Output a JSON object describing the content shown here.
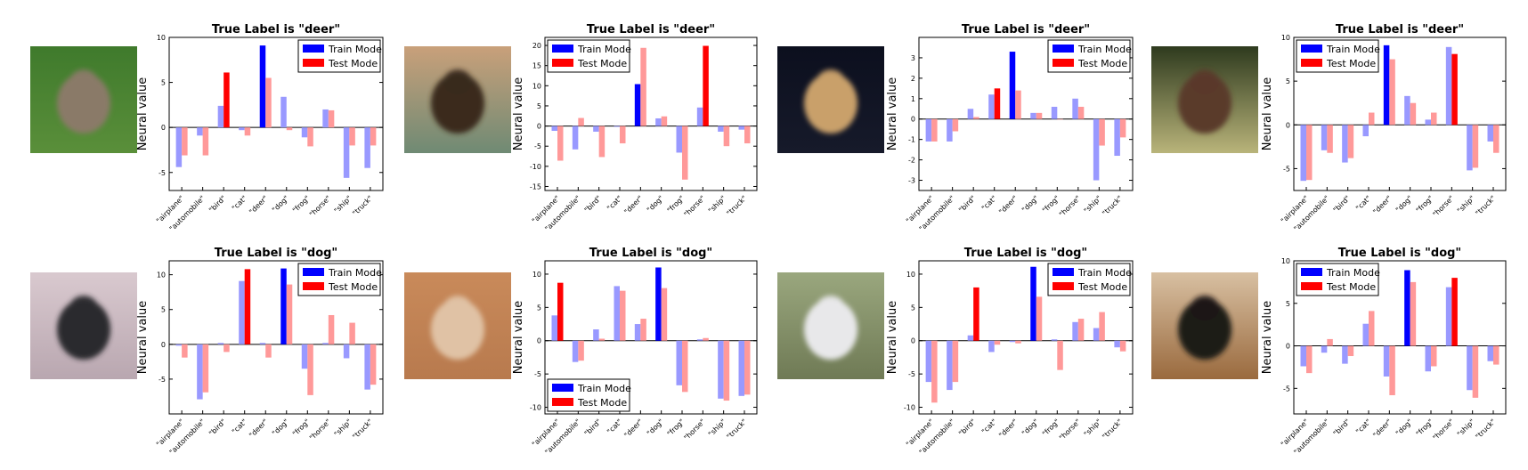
{
  "colors": {
    "train_strong": "#0000ff",
    "train_faded": "#9999ff",
    "test_strong": "#ff0000",
    "test_faded": "#ff9999"
  },
  "thumbnails": [
    {
      "name": "deer-photo-1",
      "bg": [
        "#3f7a2c",
        "#5a8f3a"
      ],
      "subject": "#8a7a68"
    },
    {
      "name": "deer-photo-2",
      "bg": [
        "#c9a07a",
        "#6f8a74"
      ],
      "subject": "#3a2a1e"
    },
    {
      "name": "deer-photo-3",
      "bg": [
        "#0c0f1e",
        "#161a2a"
      ],
      "subject": "#c9a06a"
    },
    {
      "name": "deer-photo-4",
      "bg": [
        "#2e3a1e",
        "#b9b47a"
      ],
      "subject": "#5a3a2a"
    },
    {
      "name": "dog-photo-1",
      "bg": [
        "#d9c9cf",
        "#b9a7b0"
      ],
      "subject": "#2a2a2e"
    },
    {
      "name": "dog-photo-2",
      "bg": [
        "#c98a5a",
        "#b87a4e"
      ],
      "subject": "#e0c2a5"
    },
    {
      "name": "dog-photo-3",
      "bg": [
        "#9aa77e",
        "#6f7a55"
      ],
      "subject": "#e8e8ea"
    },
    {
      "name": "dog-photo-4",
      "bg": [
        "#d8c0a2",
        "#9a6a3e"
      ],
      "subject": "#1e1a18"
    }
  ],
  "chart_data": [
    {
      "type": "bar",
      "title": "True Label is \"deer\"",
      "ylabel": "Neural value",
      "categories": [
        "\"airplane\"",
        "\"automobile\"",
        "\"bird\"",
        "\"cat\"",
        "\"deer\"",
        "\"dog\"",
        "\"frog\"",
        "\"horse\"",
        "\"ship\"",
        "\"truck\""
      ],
      "ylim": [
        -7,
        10
      ],
      "yticks": [
        -5,
        0,
        5,
        10
      ],
      "legend": "top-right",
      "series": [
        {
          "name": "Train Mode",
          "values": [
            -4.4,
            -0.9,
            2.4,
            -0.3,
            9.1,
            3.4,
            -1.1,
            2.0,
            -5.6,
            -4.5
          ]
        },
        {
          "name": "Test Mode",
          "values": [
            -3.1,
            -3.1,
            6.1,
            -0.9,
            5.5,
            -0.3,
            -2.1,
            1.9,
            -2.0,
            -2.0
          ]
        }
      ]
    },
    {
      "type": "bar",
      "title": "True Label is \"deer\"",
      "ylabel": "Neural value",
      "categories": [
        "\"airplane\"",
        "\"automobile\"",
        "\"bird\"",
        "\"cat\"",
        "\"deer\"",
        "\"dog\"",
        "\"frog\"",
        "\"horse\"",
        "\"ship\"",
        "\"truck\""
      ],
      "ylim": [
        -16,
        22
      ],
      "yticks": [
        -15,
        -10,
        -5,
        0,
        5,
        10,
        15,
        20
      ],
      "legend": "top-left",
      "series": [
        {
          "name": "Train Mode",
          "values": [
            -1.2,
            -5.8,
            -1.4,
            -0.2,
            10.4,
            1.9,
            -6.6,
            4.6,
            -1.4,
            -0.9
          ]
        },
        {
          "name": "Test Mode",
          "values": [
            -8.6,
            2.0,
            -7.7,
            -4.3,
            19.4,
            2.4,
            -13.3,
            19.9,
            -5.0,
            -4.3
          ]
        }
      ]
    },
    {
      "type": "bar",
      "title": "True Label is \"deer\"",
      "ylabel": "Neural value",
      "categories": [
        "\"airplane\"",
        "\"automobile\"",
        "\"bird\"",
        "\"cat\"",
        "\"deer\"",
        "\"dog\"",
        "\"frog\"",
        "\"horse\"",
        "\"ship\"",
        "\"truck\""
      ],
      "ylim": [
        -3.5,
        4
      ],
      "yticks": [
        -3,
        -2,
        -1,
        0,
        1,
        2,
        3
      ],
      "legend": "top-right",
      "series": [
        {
          "name": "Train Mode",
          "values": [
            -1.1,
            -1.1,
            0.5,
            1.2,
            3.3,
            0.3,
            0.6,
            1.0,
            -3.0,
            -1.8
          ]
        },
        {
          "name": "Test Mode",
          "values": [
            -1.1,
            -0.6,
            0.1,
            1.5,
            1.4,
            0.3,
            0.0,
            0.6,
            -1.3,
            -0.9
          ]
        }
      ]
    },
    {
      "type": "bar",
      "title": "True Label is \"deer\"",
      "ylabel": "Neural value",
      "categories": [
        "\"airplane\"",
        "\"automobile\"",
        "\"bird\"",
        "\"cat\"",
        "\"deer\"",
        "\"dog\"",
        "\"frog\"",
        "\"horse\"",
        "\"ship\"",
        "\"truck\""
      ],
      "ylim": [
        -7.5,
        10
      ],
      "yticks": [
        -5,
        0,
        5,
        10
      ],
      "legend": "top-left",
      "series": [
        {
          "name": "Train Mode",
          "values": [
            -6.4,
            -2.9,
            -4.3,
            -1.3,
            9.1,
            3.3,
            0.6,
            8.9,
            -5.2,
            -1.9
          ]
        },
        {
          "name": "Test Mode",
          "values": [
            -6.3,
            -3.2,
            -3.8,
            1.4,
            7.5,
            2.5,
            1.4,
            8.1,
            -4.9,
            -3.2
          ]
        }
      ]
    },
    {
      "type": "bar",
      "title": "True Label is \"dog\"",
      "ylabel": "Neural value",
      "categories": [
        "\"airplane\"",
        "\"automobile\"",
        "\"bird\"",
        "\"cat\"",
        "\"deer\"",
        "\"dog\"",
        "\"frog\"",
        "\"horse\"",
        "\"ship\"",
        "\"truck\""
      ],
      "ylim": [
        -10,
        12
      ],
      "yticks": [
        -5,
        0,
        5,
        10
      ],
      "legend": "top-right",
      "series": [
        {
          "name": "Train Mode",
          "values": [
            -0.2,
            -7.9,
            0.2,
            9.1,
            0.2,
            10.9,
            -3.5,
            0.2,
            -2.0,
            -6.5
          ]
        },
        {
          "name": "Test Mode",
          "values": [
            -1.9,
            -6.9,
            -1.1,
            10.8,
            -1.9,
            8.6,
            -7.3,
            4.2,
            3.1,
            -5.8
          ]
        }
      ]
    },
    {
      "type": "bar",
      "title": "True Label is \"dog\"",
      "ylabel": "Neural value",
      "categories": [
        "\"airplane\"",
        "\"automobile\"",
        "\"bird\"",
        "\"cat\"",
        "\"deer\"",
        "\"dog\"",
        "\"frog\"",
        "\"horse\"",
        "\"ship\"",
        "\"truck\""
      ],
      "ylim": [
        -11,
        12
      ],
      "yticks": [
        -10,
        -5,
        0,
        5,
        10
      ],
      "legend": "bottom-left",
      "series": [
        {
          "name": "Train Mode",
          "values": [
            3.8,
            -3.2,
            1.7,
            8.2,
            2.5,
            11.0,
            -6.7,
            0.2,
            -8.7,
            -8.3
          ]
        },
        {
          "name": "Test Mode",
          "values": [
            8.7,
            -3.0,
            0.3,
            7.5,
            3.3,
            7.9,
            -7.7,
            0.4,
            -9.0,
            -8.1
          ]
        }
      ]
    },
    {
      "type": "bar",
      "title": "True Label is \"dog\"",
      "ylabel": "Neural value",
      "categories": [
        "\"airplane\"",
        "\"automobile\"",
        "\"bird\"",
        "\"cat\"",
        "\"deer\"",
        "\"dog\"",
        "\"frog\"",
        "\"horse\"",
        "\"ship\"",
        "\"truck\""
      ],
      "ylim": [
        -11,
        12
      ],
      "yticks": [
        -10,
        -5,
        0,
        5,
        10
      ],
      "legend": "top-right",
      "series": [
        {
          "name": "Train Mode",
          "values": [
            -6.2,
            -7.4,
            0.8,
            -1.7,
            -0.2,
            11.1,
            0.2,
            2.8,
            1.9,
            -1.0
          ]
        },
        {
          "name": "Test Mode",
          "values": [
            -9.3,
            -6.2,
            8.0,
            -0.6,
            -0.4,
            6.6,
            -4.4,
            3.3,
            4.3,
            -1.6
          ]
        }
      ]
    },
    {
      "type": "bar",
      "title": "True Label is \"dog\"",
      "ylabel": "Neural value",
      "categories": [
        "\"airplane\"",
        "\"automobile\"",
        "\"bird\"",
        "\"cat\"",
        "\"deer\"",
        "\"dog\"",
        "\"frog\"",
        "\"horse\"",
        "\"ship\"",
        "\"truck\""
      ],
      "ylim": [
        -8,
        10
      ],
      "yticks": [
        -5,
        0,
        5,
        10
      ],
      "legend": "top-left",
      "series": [
        {
          "name": "Train Mode",
          "values": [
            -2.4,
            -0.8,
            -2.1,
            2.6,
            -3.6,
            8.9,
            -3.0,
            6.9,
            -5.2,
            -1.8
          ]
        },
        {
          "name": "Test Mode",
          "values": [
            -3.2,
            0.8,
            -1.2,
            4.1,
            -5.8,
            7.5,
            -2.4,
            8.0,
            -6.1,
            -2.2
          ]
        }
      ]
    }
  ]
}
